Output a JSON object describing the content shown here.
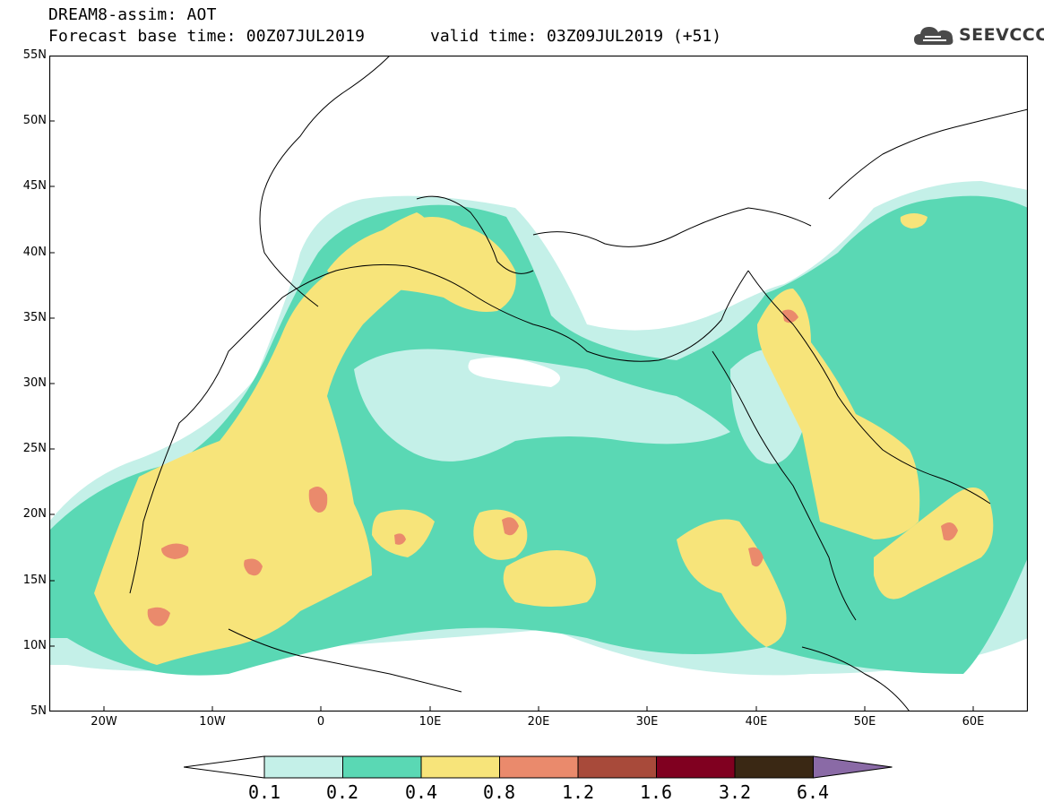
{
  "header": {
    "model_title": "DREAM8-assim: AOT",
    "base_time": "Forecast base time: 00Z07JUL2019",
    "valid_time": "valid time: 03Z09JUL2019 (+51)"
  },
  "logo": {
    "text": "SEEVCCC",
    "icon": "cloud-logo-icon"
  },
  "map": {
    "lon_range": [
      -25,
      65
    ],
    "lat_range": [
      5,
      55
    ],
    "lat_ticks": [
      "55N",
      "50N",
      "45N",
      "40N",
      "35N",
      "30N",
      "25N",
      "20N",
      "15N",
      "10N",
      "5N"
    ],
    "lon_ticks": [
      "20W",
      "10W",
      "0",
      "10E",
      "20E",
      "30E",
      "40E",
      "50E",
      "60E"
    ]
  },
  "colorbar": {
    "labels": [
      "0.1",
      "0.2",
      "0.4",
      "0.8",
      "1.2",
      "1.6",
      "3.2",
      "6.4"
    ],
    "colors": [
      "#ffffff",
      "#c4f0e8",
      "#5ad8b4",
      "#f7e47a",
      "#ea8a6c",
      "#a84a3a",
      "#800020",
      "#3a2814",
      "#8a6aa6"
    ]
  }
}
